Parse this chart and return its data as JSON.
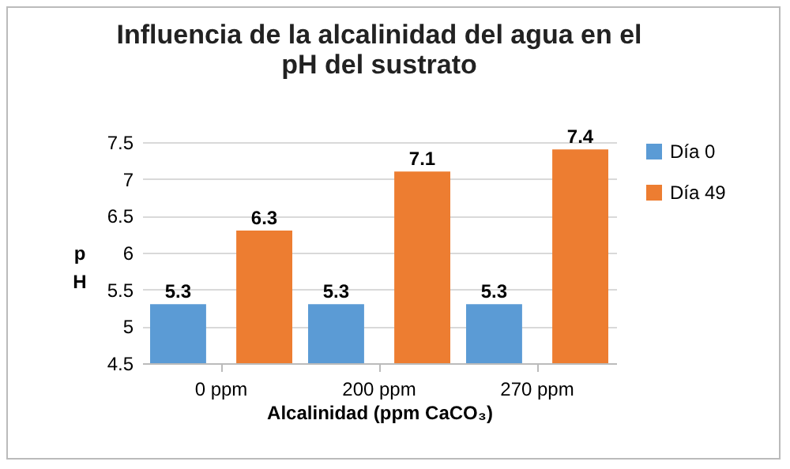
{
  "chart_data": {
    "type": "bar",
    "title": "Influencia de la alcalinidad del agua en el pH del sustrato",
    "xlabel": "Alcalinidad (ppm CaCO₃)",
    "ylabel": "pH",
    "categories": [
      "0 ppm",
      "200 ppm",
      "270 ppm"
    ],
    "series": [
      {
        "name": "Día 0",
        "color": "#5b9bd5",
        "values": [
          5.3,
          5.3,
          5.3
        ]
      },
      {
        "name": "Día 49",
        "color": "#ed7d31",
        "values": [
          6.3,
          7.1,
          7.4
        ]
      }
    ],
    "ylim": [
      4.5,
      7.5
    ],
    "yticks": [
      4.5,
      5,
      5.5,
      6,
      6.5,
      7,
      7.5
    ],
    "grid": "y",
    "legend": "right",
    "data_labels": true
  }
}
